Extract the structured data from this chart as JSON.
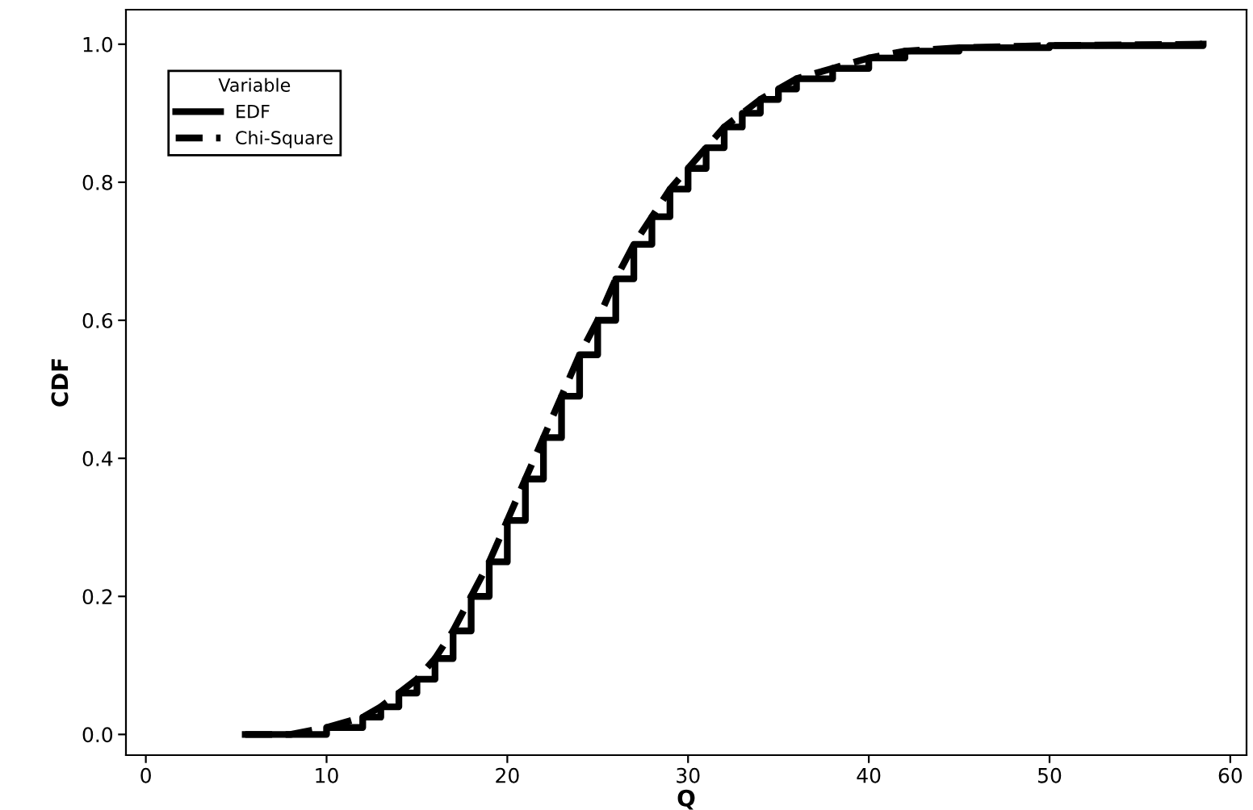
{
  "chart_data": {
    "type": "line",
    "xlabel": "Q",
    "ylabel": "CDF",
    "legend_title": "Variable",
    "legend": "top left",
    "grid": false,
    "xlim": [
      -1.1,
      60.9
    ],
    "ylim": [
      -0.03,
      1.05
    ],
    "xticks": [
      0,
      10,
      20,
      30,
      40,
      50,
      60
    ],
    "yticks": [
      {
        "value": 0,
        "label": "0.0"
      },
      {
        "value": 0.2,
        "label": "0.2"
      },
      {
        "value": 0.4,
        "label": "0.4"
      },
      {
        "value": 0.6,
        "label": "0.6"
      },
      {
        "value": 0.8,
        "label": "0.8"
      },
      {
        "value": 1.0,
        "label": "1.0"
      }
    ],
    "series": [
      {
        "name": "EDF",
        "type": "step",
        "line_style": "solid",
        "color": "#000000",
        "x": [
          5.5,
          8,
          10,
          12,
          13,
          14,
          15,
          16,
          17,
          18,
          19,
          20,
          21,
          22,
          23,
          24,
          25,
          26,
          27,
          28,
          29,
          30,
          31,
          32,
          33,
          34,
          35,
          36,
          38,
          40,
          42,
          45,
          50,
          58.5
        ],
        "values": [
          0.0,
          0.0,
          0.01,
          0.025,
          0.04,
          0.06,
          0.08,
          0.11,
          0.15,
          0.2,
          0.25,
          0.31,
          0.37,
          0.43,
          0.49,
          0.55,
          0.6,
          0.66,
          0.71,
          0.75,
          0.79,
          0.82,
          0.85,
          0.88,
          0.9,
          0.92,
          0.935,
          0.95,
          0.965,
          0.98,
          0.99,
          0.995,
          0.998,
          1.0
        ]
      },
      {
        "name": "Chi-Square",
        "line_style": "dashed",
        "color": "#000000",
        "x": [
          5.5,
          8,
          10,
          12,
          13,
          14,
          15,
          16,
          17,
          18,
          19,
          20,
          21,
          22,
          23,
          24,
          25,
          26,
          27,
          28,
          29,
          30,
          31,
          32,
          33,
          34,
          35,
          36,
          38,
          40,
          42,
          45,
          50,
          58.5
        ],
        "values": [
          0.0,
          0.0,
          0.01,
          0.025,
          0.04,
          0.06,
          0.08,
          0.11,
          0.15,
          0.2,
          0.25,
          0.31,
          0.37,
          0.43,
          0.49,
          0.55,
          0.6,
          0.66,
          0.71,
          0.75,
          0.79,
          0.82,
          0.85,
          0.88,
          0.9,
          0.92,
          0.935,
          0.95,
          0.965,
          0.98,
          0.99,
          0.995,
          0.998,
          1.0
        ]
      }
    ]
  }
}
